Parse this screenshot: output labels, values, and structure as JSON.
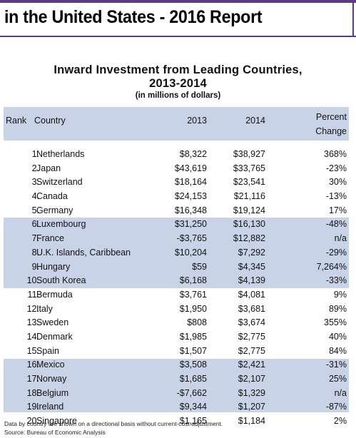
{
  "report_title": "in the United States - 2016 Report",
  "table": {
    "title_line1": "Inward Investment from Leading Countries,",
    "title_line2": "2013-2014",
    "subtitle": "(in millions of dollars)",
    "headers": {
      "rank": "Rank",
      "country": "Country",
      "y2013": "2013",
      "y2014": "2014",
      "pc_line1": "Percent",
      "pc_line2": "Change"
    },
    "rows": [
      {
        "rank": "1.",
        "country": "Netherlands",
        "y2013": "$8,322",
        "y2014": "$38,927",
        "pc": "368%"
      },
      {
        "rank": "2.",
        "country": "Japan",
        "y2013": "$43,619",
        "y2014": "$33,765",
        "pc": "-23%"
      },
      {
        "rank": "3.",
        "country": "Switzerland",
        "y2013": "$18,164",
        "y2014": "$23,541",
        "pc": "30%"
      },
      {
        "rank": "4.",
        "country": "Canada",
        "y2013": "$24,153",
        "y2014": "$21,116",
        "pc": "-13%"
      },
      {
        "rank": "5.",
        "country": "Germany",
        "y2013": "$16,348",
        "y2014": "$19,124",
        "pc": "17%"
      },
      {
        "rank": "6.",
        "country": "Luxembourg",
        "y2013": "$31,250",
        "y2014": "$16,130",
        "pc": "-48%"
      },
      {
        "rank": "7.",
        "country": "France",
        "y2013": "-$3,765",
        "y2014": "$12,882",
        "pc": "n/a"
      },
      {
        "rank": "8.",
        "country": "U.K. Islands, Caribbean",
        "y2013": "$10,204",
        "y2014": "$7,292",
        "pc": "-29%"
      },
      {
        "rank": "9.",
        "country": "Hungary",
        "y2013": "$59",
        "y2014": "$4,345",
        "pc": "7,264%"
      },
      {
        "rank": "10.",
        "country": "South Korea",
        "y2013": "$6,168",
        "y2014": "$4,139",
        "pc": "-33%"
      },
      {
        "rank": "11.",
        "country": "Bermuda",
        "y2013": "$3,761",
        "y2014": "$4,081",
        "pc": "9%"
      },
      {
        "rank": "12.",
        "country": "Italy",
        "y2013": "$1,950",
        "y2014": "$3,681",
        "pc": "89%"
      },
      {
        "rank": "13.",
        "country": "Sweden",
        "y2013": "$808",
        "y2014": "$3,674",
        "pc": "355%"
      },
      {
        "rank": "14.",
        "country": "Denmark",
        "y2013": "$1,985",
        "y2014": "$2,775",
        "pc": "40%"
      },
      {
        "rank": "15.",
        "country": "Spain",
        "y2013": "$1,507",
        "y2014": "$2,775",
        "pc": "84%"
      },
      {
        "rank": "16.",
        "country": "Mexico",
        "y2013": "$3,508",
        "y2014": "$2,421",
        "pc": "-31%"
      },
      {
        "rank": "17.",
        "country": "Norway",
        "y2013": "$1,685",
        "y2014": "$2,107",
        "pc": "25%"
      },
      {
        "rank": "18.",
        "country": "Belgium",
        "y2013": "-$7,662",
        "y2014": "$1,329",
        "pc": "n/a"
      },
      {
        "rank": "19.",
        "country": "Ireland",
        "y2013": "$9,344",
        "y2014": "$1,207",
        "pc": "-87%"
      },
      {
        "rank": "20.",
        "country": "Singapore",
        "y2013": "$1,165",
        "y2014": "$1,184",
        "pc": "2%"
      }
    ]
  },
  "footnotes": {
    "note": "Data by country are shown on a directional basis without current-cost adjustment.",
    "source": "Source: Bureau of Economic Analysis"
  },
  "colors": {
    "accent": "#5b3a88",
    "band": "#c9d3e8"
  }
}
